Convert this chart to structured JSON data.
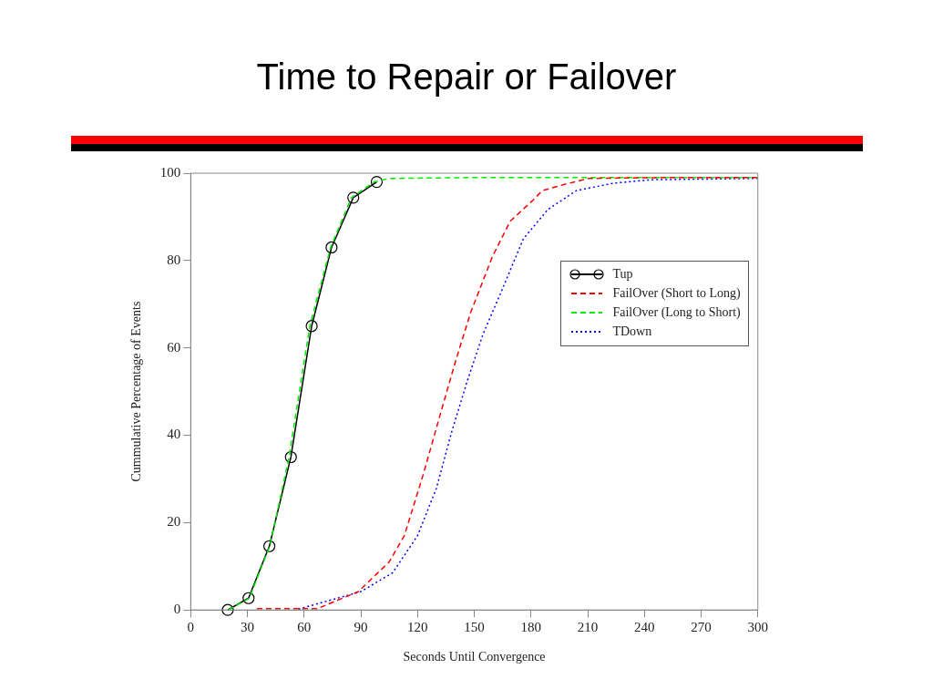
{
  "chart_data": {
    "type": "line",
    "title": "Time to Repair or Failover",
    "xlabel": "Seconds Until Convergence",
    "ylabel": "Cummulative Percentage of Events",
    "xlim": [
      0,
      300
    ],
    "xticks": [
      0,
      30,
      60,
      90,
      120,
      150,
      180,
      210,
      240,
      270,
      300
    ],
    "ylim": [
      0,
      100
    ],
    "yticks": [
      0,
      20,
      40,
      60,
      80,
      100
    ],
    "grid": false,
    "legend": "right",
    "series": [
      {
        "name": "Tup",
        "color": "#000000",
        "marker": "circle",
        "line_style": "solid",
        "x": [
          19.6,
          30.6,
          41.6,
          53,
          64,
          74.5,
          86,
          98.4
        ],
        "values": [
          0,
          2.7,
          14.6,
          35,
          65,
          83,
          94.4,
          98
        ]
      },
      {
        "name": "FailOver (Short to Long)",
        "color": "#ff0000",
        "marker": "none",
        "line_style": "dashed",
        "x": [
          35,
          45.9,
          67,
          88.7,
          105,
          113,
          123,
          131.5,
          139.8,
          148,
          159.6,
          169,
          181,
          186,
          197.4,
          210.6,
          250,
          300
        ],
        "values": [
          0.3,
          0.3,
          0.3,
          4.2,
          11,
          17,
          31,
          44,
          56.5,
          68,
          80.9,
          89,
          93.8,
          96,
          97.4,
          98.8,
          99,
          99
        ]
      },
      {
        "name": "FailOver (Long to Short)",
        "color": "#00ee00",
        "marker": "none",
        "line_style": "dashed",
        "x": [
          20,
          31,
          42,
          52,
          63,
          74,
          85,
          97,
          105,
          150,
          300
        ],
        "values": [
          0,
          2.7,
          14.8,
          35,
          65,
          83,
          94.4,
          98,
          98.8,
          99,
          99
        ]
      },
      {
        "name": "TDown",
        "color": "#0000ff",
        "marker": "none",
        "line_style": "dotted",
        "x": [
          57,
          90,
          106.8,
          120,
          130,
          138,
          146,
          154.5,
          164.4,
          176,
          189,
          204,
          223.6,
          243.7,
          300
        ],
        "values": [
          0.2,
          4.2,
          8.5,
          17,
          27.9,
          40.7,
          52,
          63,
          73,
          85,
          91.7,
          96,
          97.7,
          98.5,
          98.8
        ]
      }
    ]
  }
}
